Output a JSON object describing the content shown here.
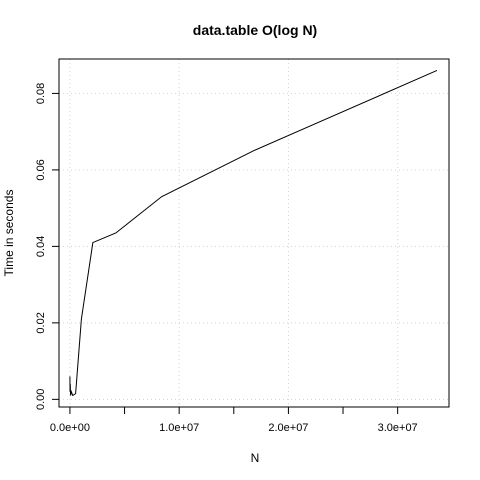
{
  "chart_data": {
    "type": "line",
    "title": "data.table O(log N)",
    "xlabel": "N",
    "ylabel": "Time in seconds",
    "xlim": [
      -1000000,
      34700000
    ],
    "ylim": [
      -0.002,
      0.089
    ],
    "grid": true,
    "x_ticks": [
      0,
      5000000,
      10000000,
      15000000,
      20000000,
      25000000,
      30000000
    ],
    "x_tick_labels": [
      "0.0e+00",
      "",
      "1.0e+07",
      "",
      "2.0e+07",
      "",
      "3.0e+07"
    ],
    "y_ticks": [
      0,
      0.02,
      0.04,
      0.06,
      0.08
    ],
    "y_tick_labels": [
      "0.00",
      "0.02",
      "0.04",
      "0.06",
      "0.08"
    ],
    "series": [
      {
        "color": "#000000",
        "x": [
          0,
          10000,
          30000,
          60000,
          130000,
          260000,
          520000,
          1050000,
          2100000,
          4200000,
          8400000,
          16800000,
          33600000
        ],
        "y": [
          0.006,
          0.002,
          0.004,
          0.001,
          0.002,
          0.001,
          0.0015,
          0.021,
          0.041,
          0.0435,
          0.053,
          0.065,
          0.086
        ]
      }
    ]
  }
}
